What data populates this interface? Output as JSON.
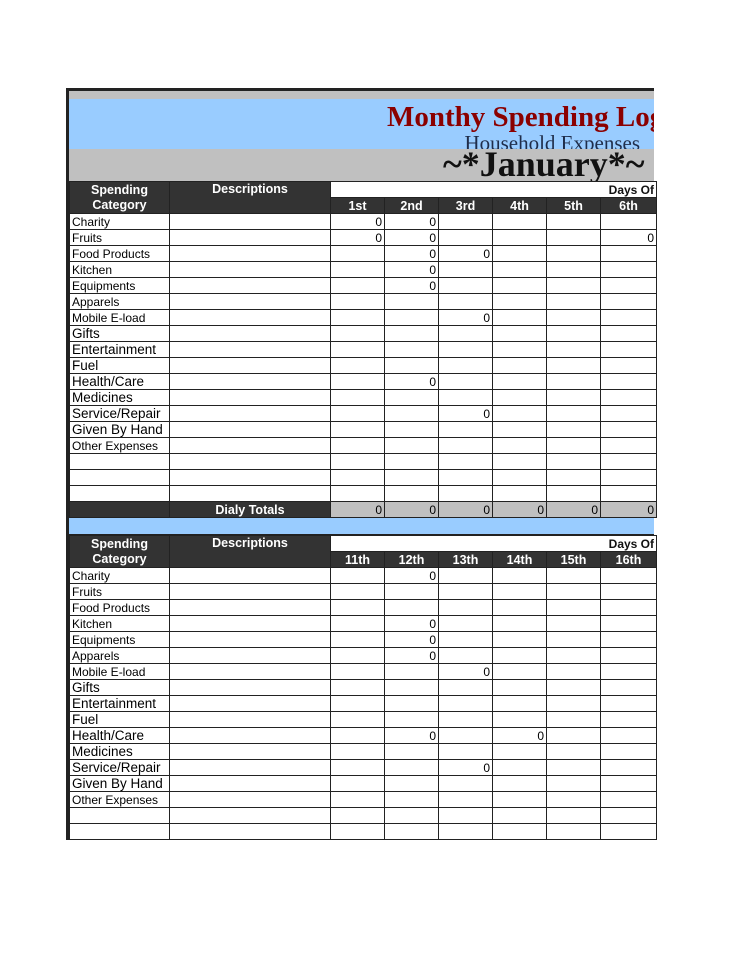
{
  "title": "Monthy Spending Log",
  "subtitle": "Household Expenses",
  "month": "~*January*~",
  "headers": {
    "category": "Spending Category",
    "descriptions": "Descriptions",
    "days_of": "Days Of"
  },
  "totals_label": "Dialy Totals",
  "colors": {
    "header": "#333333",
    "blue_band": "#99ccff",
    "gray_band": "#c0c0c0",
    "title": "#8b0000"
  },
  "sections": [
    {
      "days": [
        "1st",
        "2nd",
        "3rd",
        "4th",
        "5th",
        "6th"
      ],
      "rows": [
        {
          "category": "Charity",
          "values": [
            "0",
            "0",
            "",
            "",
            "",
            ""
          ]
        },
        {
          "category": "Fruits",
          "values": [
            "0",
            "0",
            "",
            "",
            "",
            "0"
          ]
        },
        {
          "category": "Food Products",
          "values": [
            "",
            "0",
            "0",
            "",
            "",
            ""
          ]
        },
        {
          "category": "Kitchen",
          "values": [
            "",
            "0",
            "",
            "",
            "",
            ""
          ]
        },
        {
          "category": "Equipments",
          "values": [
            "",
            "0",
            "",
            "",
            "",
            ""
          ]
        },
        {
          "category": "Apparels",
          "values": [
            "",
            "",
            "",
            "",
            "",
            ""
          ]
        },
        {
          "category": "Mobile E-load",
          "values": [
            "",
            "",
            "0",
            "",
            "",
            ""
          ]
        },
        {
          "category": "Gifts",
          "values": [
            "",
            "",
            "",
            "",
            "",
            ""
          ]
        },
        {
          "category": "Entertainment",
          "values": [
            "",
            "",
            "",
            "",
            "",
            ""
          ]
        },
        {
          "category": "Fuel",
          "values": [
            "",
            "",
            "",
            "",
            "",
            ""
          ]
        },
        {
          "category": "Health/Care",
          "values": [
            "",
            "0",
            "",
            "",
            "",
            ""
          ]
        },
        {
          "category": "Medicines",
          "values": [
            "",
            "",
            "",
            "",
            "",
            ""
          ]
        },
        {
          "category": "Service/Repair",
          "values": [
            "",
            "",
            "0",
            "",
            "",
            ""
          ]
        },
        {
          "category": "Given By Hand",
          "values": [
            "",
            "",
            "",
            "",
            "",
            ""
          ]
        },
        {
          "category": "Other Expenses",
          "values": [
            "",
            "",
            "",
            "",
            "",
            ""
          ]
        },
        {
          "category": "",
          "values": [
            "",
            "",
            "",
            "",
            "",
            ""
          ]
        },
        {
          "category": "",
          "values": [
            "",
            "",
            "",
            "",
            "",
            ""
          ]
        },
        {
          "category": "",
          "values": [
            "",
            "",
            "",
            "",
            "",
            ""
          ]
        }
      ],
      "totals": [
        "0",
        "0",
        "0",
        "0",
        "0",
        "0"
      ]
    },
    {
      "days": [
        "11th",
        "12th",
        "13th",
        "14th",
        "15th",
        "16th"
      ],
      "rows": [
        {
          "category": "Charity",
          "values": [
            "",
            "0",
            "",
            "",
            "",
            ""
          ]
        },
        {
          "category": "Fruits",
          "values": [
            "",
            "",
            "",
            "",
            "",
            ""
          ]
        },
        {
          "category": "Food Products",
          "values": [
            "",
            "",
            "",
            "",
            "",
            ""
          ]
        },
        {
          "category": "Kitchen",
          "values": [
            "",
            "0",
            "",
            "",
            "",
            ""
          ]
        },
        {
          "category": "Equipments",
          "values": [
            "",
            "0",
            "",
            "",
            "",
            ""
          ]
        },
        {
          "category": "Apparels",
          "values": [
            "",
            "0",
            "",
            "",
            "",
            ""
          ]
        },
        {
          "category": "Mobile E-load",
          "values": [
            "",
            "",
            "0",
            "",
            "",
            ""
          ]
        },
        {
          "category": "Gifts",
          "values": [
            "",
            "",
            "",
            "",
            "",
            ""
          ]
        },
        {
          "category": "Entertainment",
          "values": [
            "",
            "",
            "",
            "",
            "",
            ""
          ]
        },
        {
          "category": "Fuel",
          "values": [
            "",
            "",
            "",
            "",
            "",
            ""
          ]
        },
        {
          "category": "Health/Care",
          "values": [
            "",
            "0",
            "",
            "0",
            "",
            ""
          ]
        },
        {
          "category": "Medicines",
          "values": [
            "",
            "",
            "",
            "",
            "",
            ""
          ]
        },
        {
          "category": "Service/Repair",
          "values": [
            "",
            "",
            "0",
            "",
            "",
            ""
          ]
        },
        {
          "category": "Given By Hand",
          "values": [
            "",
            "",
            "",
            "",
            "",
            ""
          ]
        },
        {
          "category": "Other Expenses",
          "values": [
            "",
            "",
            "",
            "",
            "",
            ""
          ]
        },
        {
          "category": "",
          "values": [
            "",
            "",
            "",
            "",
            "",
            ""
          ]
        },
        {
          "category": "",
          "values": [
            "",
            "",
            "",
            "",
            "",
            ""
          ]
        }
      ]
    }
  ]
}
